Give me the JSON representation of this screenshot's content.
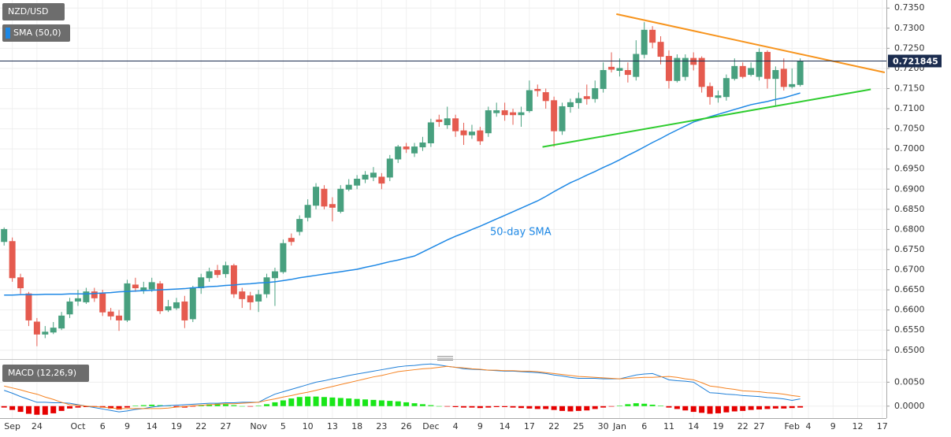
{
  "chart_data": {
    "type": "candlestick",
    "title": "NZD/USD",
    "categories": [
      null,
      "Sep",
      null,
      null,
      "24",
      null,
      null,
      null,
      null,
      "Oct",
      null,
      null,
      "6",
      null,
      null,
      "9",
      null,
      null,
      "14",
      null,
      null,
      "19",
      null,
      null,
      "22",
      null,
      null,
      "27",
      null,
      null,
      null,
      "Nov",
      null,
      null,
      "5",
      null,
      null,
      "10",
      null,
      null,
      "13",
      null,
      null,
      "18",
      null,
      null,
      "23",
      null,
      null,
      "26",
      null,
      null,
      "Dec",
      null,
      null,
      "4",
      null,
      null,
      "9",
      null,
      null,
      "14",
      null,
      null,
      "17",
      null,
      null,
      "22",
      null,
      null,
      "25",
      null,
      null,
      "30",
      null,
      "Jan",
      null,
      null,
      "6",
      null,
      null,
      "11",
      null,
      null,
      "14",
      null,
      null,
      "19",
      null,
      null,
      "22",
      null,
      "27",
      null,
      null,
      null,
      "Feb",
      null,
      "4",
      null,
      null,
      "9",
      null,
      null,
      "12",
      null,
      null,
      "17"
    ],
    "open": [
      0.677,
      0.677,
      0.668,
      0.664,
      0.657,
      0.654,
      0.6545,
      0.6555,
      0.659,
      0.6622,
      0.662,
      0.6645,
      0.664,
      0.6595,
      0.6585,
      0.6575,
      0.6662,
      0.665,
      0.6652,
      0.6665,
      0.66,
      0.6605,
      0.662,
      0.6578,
      0.6655,
      0.668,
      0.6698,
      0.669,
      0.671,
      0.6645,
      0.6635,
      0.6622,
      0.664,
      0.668,
      0.6695,
      0.6778,
      0.6795,
      0.683,
      0.686,
      0.69,
      0.6862,
      0.6845,
      0.69,
      0.691,
      0.6925,
      0.693,
      0.693,
      0.693,
      0.6975,
      0.7005,
      0.699,
      0.7005,
      0.7015,
      0.7072,
      0.706,
      0.7075,
      0.7045,
      0.7035,
      0.7045,
      0.704,
      0.709,
      0.7095,
      0.709,
      0.7085,
      0.7095,
      0.7148,
      0.714,
      0.712,
      0.7045,
      0.7105,
      0.7115,
      0.713,
      0.7125,
      0.715,
      0.7203,
      0.7195,
      0.7195,
      0.718,
      0.7235,
      0.7295,
      0.7265,
      0.723,
      0.717,
      0.718,
      0.7225,
      0.7225,
      0.7155,
      0.7128,
      0.713,
      0.7175,
      0.7205,
      0.7185,
      0.718,
      0.724,
      0.7175,
      0.7198,
      0.7155,
      0.716,
      null,
      null,
      null,
      null,
      null,
      null,
      null,
      null,
      null,
      null
    ],
    "high": [
      0.6805,
      0.678,
      0.669,
      0.6645,
      0.658,
      0.656,
      0.657,
      0.6595,
      0.663,
      0.665,
      0.6655,
      0.6655,
      0.665,
      0.6605,
      0.66,
      0.6675,
      0.668,
      0.667,
      0.668,
      0.6672,
      0.6625,
      0.663,
      0.6635,
      0.666,
      0.669,
      0.6705,
      0.6712,
      0.672,
      0.6715,
      0.6655,
      0.6645,
      0.665,
      0.669,
      0.6705,
      0.6775,
      0.679,
      0.6835,
      0.6875,
      0.6915,
      0.691,
      0.688,
      0.691,
      0.6925,
      0.6935,
      0.6945,
      0.6955,
      0.694,
      0.6985,
      0.701,
      0.7015,
      0.7015,
      0.703,
      0.7075,
      0.7085,
      0.7105,
      0.7085,
      0.7065,
      0.706,
      0.7055,
      0.7105,
      0.7115,
      0.7115,
      0.71,
      0.7105,
      0.717,
      0.716,
      0.715,
      0.713,
      0.7115,
      0.7125,
      0.714,
      0.716,
      0.717,
      0.7215,
      0.724,
      0.7225,
      0.7215,
      0.727,
      0.7315,
      0.7305,
      0.728,
      0.7245,
      0.7235,
      0.7235,
      0.724,
      0.723,
      0.7165,
      0.7145,
      0.7185,
      0.7225,
      0.7215,
      0.7215,
      0.725,
      0.7245,
      0.7205,
      0.7225,
      0.72,
      0.7225,
      null,
      null,
      null,
      null,
      null,
      null,
      null,
      null,
      null,
      null
    ],
    "low": [
      0.676,
      0.667,
      0.664,
      0.656,
      0.651,
      0.653,
      0.654,
      0.655,
      0.658,
      0.661,
      0.6615,
      0.662,
      0.6585,
      0.6575,
      0.6548,
      0.657,
      0.6645,
      0.664,
      0.6645,
      0.659,
      0.6595,
      0.66,
      0.6555,
      0.657,
      0.664,
      0.667,
      0.668,
      0.668,
      0.663,
      0.6605,
      0.66,
      0.6595,
      0.663,
      0.661,
      0.669,
      0.676,
      0.6785,
      0.682,
      0.685,
      0.685,
      0.682,
      0.684,
      0.6895,
      0.69,
      0.6915,
      0.692,
      0.69,
      0.692,
      0.6965,
      0.699,
      0.698,
      0.6995,
      0.7005,
      0.7055,
      0.705,
      0.703,
      0.701,
      0.7025,
      0.701,
      0.703,
      0.708,
      0.707,
      0.706,
      0.7055,
      0.709,
      0.713,
      0.71,
      0.7005,
      0.7035,
      0.709,
      0.71,
      0.711,
      0.7115,
      0.714,
      0.719,
      0.718,
      0.7165,
      0.717,
      0.7225,
      0.725,
      0.721,
      0.715,
      0.7165,
      0.717,
      0.7195,
      0.714,
      0.711,
      0.7115,
      0.712,
      0.717,
      0.7175,
      0.718,
      0.717,
      0.715,
      0.7105,
      0.7145,
      0.715,
      0.7155,
      null,
      null,
      null,
      null,
      null,
      null,
      null,
      null,
      null,
      null
    ],
    "close": [
      0.68,
      0.668,
      0.6655,
      0.6575,
      0.654,
      0.6545,
      0.6555,
      0.6585,
      0.662,
      0.6628,
      0.6645,
      0.663,
      0.6595,
      0.6585,
      0.6575,
      0.6665,
      0.6655,
      0.6655,
      0.6668,
      0.6598,
      0.6608,
      0.6618,
      0.6575,
      0.6655,
      0.668,
      0.6695,
      0.6688,
      0.671,
      0.664,
      0.6628,
      0.662,
      0.6638,
      0.668,
      0.6695,
      0.6765,
      0.677,
      0.6825,
      0.686,
      0.6905,
      0.6858,
      0.6855,
      0.69,
      0.691,
      0.6925,
      0.6935,
      0.694,
      0.6915,
      0.6975,
      0.7005,
      0.7,
      0.7005,
      0.7015,
      0.7065,
      0.7068,
      0.7075,
      0.7045,
      0.7035,
      0.7042,
      0.702,
      0.7095,
      0.7095,
      0.7085,
      0.7085,
      0.709,
      0.7145,
      0.7145,
      0.712,
      0.7045,
      0.7105,
      0.7115,
      0.7125,
      0.7125,
      0.715,
      0.7195,
      0.7198,
      0.72,
      0.7185,
      0.7235,
      0.7295,
      0.7265,
      0.723,
      0.717,
      0.7225,
      0.7225,
      0.721,
      0.7155,
      0.713,
      0.7132,
      0.7175,
      0.7205,
      0.718,
      0.72,
      0.724,
      0.7175,
      0.7195,
      0.7155,
      0.716,
      0.7218,
      null,
      null,
      null,
      null,
      null,
      null,
      null,
      null,
      null,
      null
    ],
    "up_color": "#48a07f",
    "down_color": "#e55b4f",
    "series": [
      {
        "name": "SMA (50,0)",
        "color": "#1e88e5",
        "values": [
          0.6637,
          0.6637,
          0.6638,
          0.6638,
          0.6638,
          0.6639,
          0.6639,
          0.6639,
          0.664,
          0.664,
          0.664,
          0.6641,
          0.6642,
          0.6643,
          0.6645,
          0.6646,
          0.6647,
          0.6648,
          0.6649,
          0.665,
          0.6651,
          0.6652,
          0.6653,
          0.6655,
          0.6656,
          0.6658,
          0.6659,
          0.6661,
          0.6662,
          0.6664,
          0.6665,
          0.6667,
          0.6668,
          0.667,
          0.6673,
          0.6676,
          0.668,
          0.6683,
          0.6686,
          0.6689,
          0.6692,
          0.6695,
          0.6698,
          0.6701,
          0.6706,
          0.671,
          0.6715,
          0.672,
          0.6724,
          0.6729,
          0.6734,
          0.6744,
          0.6754,
          0.6764,
          0.6774,
          0.6783,
          0.6791,
          0.68,
          0.6808,
          0.6817,
          0.6826,
          0.6835,
          0.6844,
          0.6853,
          0.6862,
          0.6871,
          0.6882,
          0.6894,
          0.6905,
          0.6916,
          0.6925,
          0.6935,
          0.6944,
          0.6954,
          0.6963,
          0.6973,
          0.6984,
          0.6994,
          0.7005,
          0.7016,
          0.7026,
          0.7037,
          0.7047,
          0.7057,
          0.7067,
          0.7073,
          0.708,
          0.7086,
          0.7092,
          0.7098,
          0.7104,
          0.711,
          0.7114,
          0.7118,
          0.7123,
          0.7127,
          0.7133,
          0.7139,
          null,
          null,
          null,
          null,
          null,
          null,
          null,
          null,
          null,
          null
        ]
      }
    ],
    "annotations": [
      "50-day SMA"
    ],
    "trendlines": [
      {
        "color": "#f7941d",
        "x": [
          74.6,
          107.3
        ],
        "y": [
          0.7335,
          0.719
        ]
      },
      {
        "color": "#2ecc2e",
        "x": [
          65.6,
          105.6
        ],
        "y": [
          0.7005,
          0.7148
        ]
      }
    ],
    "last_price": 0.721845,
    "last_price_color": "#1b2c4f",
    "ylim": [
      0.648,
      0.737
    ],
    "yticks": [
      {
        "value": 0.735,
        "label": "0.7350"
      },
      {
        "value": 0.73,
        "label": "0.7300"
      },
      {
        "value": 0.725,
        "label": "0.7250"
      },
      {
        "value": 0.72,
        "label": "0.7200"
      },
      {
        "value": 0.715,
        "label": "0.7150"
      },
      {
        "value": 0.71,
        "label": "0.7100"
      },
      {
        "value": 0.705,
        "label": "0.7050"
      },
      {
        "value": 0.7,
        "label": "0.7000"
      },
      {
        "value": 0.695,
        "label": "0.6950"
      },
      {
        "value": 0.69,
        "label": "0.6900"
      },
      {
        "value": 0.685,
        "label": "0.6850"
      },
      {
        "value": 0.68,
        "label": "0.6800"
      },
      {
        "value": 0.675,
        "label": "0.6750"
      },
      {
        "value": 0.67,
        "label": "0.6700"
      },
      {
        "value": 0.665,
        "label": "0.6650"
      },
      {
        "value": 0.66,
        "label": "0.6600"
      },
      {
        "value": 0.655,
        "label": "0.6550"
      },
      {
        "value": 0.65,
        "label": "0.6500"
      }
    ],
    "grid": true,
    "indicator": {
      "title": "MACD (12,26,9)",
      "ylim": [
        -0.0025,
        0.0095
      ],
      "yticks": [
        {
          "value": 0.005,
          "label": "0.0050"
        },
        {
          "value": 0,
          "label": "0.0000"
        }
      ],
      "series": [
        {
          "color": "#1e7fd8",
          "values": [
            0.0033,
            0.0027,
            0.002,
            0.0014,
            0.0008,
            0.0008,
            0.0007,
            0.0007,
            0.0006,
            0.0003,
            0,
            -0.0003,
            -0.0006,
            -0.0009,
            -0.0012,
            -0.001,
            -0.0007,
            -0.0005,
            -0.0002,
            0,
            0.0001,
            0.0002,
            0.0003,
            0.0004,
            0.0005,
            0.0006,
            0.0006,
            0.0007,
            0.0007,
            0.0008,
            0.0008,
            0.0008,
            0.0017,
            0.0025,
            0.003,
            0.0035,
            0.004,
            0.0045,
            0.005,
            0.0053,
            0.0057,
            0.006,
            0.0064,
            0.0067,
            0.007,
            0.0073,
            0.0076,
            0.0079,
            0.0082,
            0.0084,
            0.0085,
            0.0087,
            0.0088,
            0.0086,
            0.0083,
            0.0081,
            0.0078,
            0.0077,
            0.0076,
            0.0075,
            0.0074,
            0.0073,
            0.0073,
            0.0072,
            0.0071,
            0.007,
            0.0068,
            0.0065,
            0.0063,
            0.006,
            0.0058,
            0.0058,
            0.0058,
            0.0057,
            0.0057,
            0.0057,
            0.0061,
            0.0065,
            0.0067,
            0.0068,
            0.0062,
            0.0055,
            0.0053,
            0.0052,
            0.005,
            0.0039,
            0.0028,
            0.0027,
            0.0025,
            0.0024,
            0.0022,
            0.0021,
            0.002,
            0.0018,
            0.0017,
            0.0015,
            0.0012,
            0.0015,
            null,
            null,
            null,
            null,
            null,
            null,
            null,
            null,
            null,
            null
          ]
        },
        {
          "color": "#f58220",
          "values": [
            0.0042,
            0.0038,
            0.0034,
            0.0029,
            0.0025,
            0.0019,
            0.0014,
            0.0008,
            0.0003,
            0.0002,
            0,
            -0.0001,
            -0.0002,
            -0.0004,
            -0.0005,
            -0.0005,
            -0.0005,
            -0.0005,
            -0.0005,
            -0.0005,
            -0.0004,
            -0.0002,
            -0.0001,
            0.0001,
            0.0002,
            0.0003,
            0.0004,
            0.0005,
            0.0005,
            0.0006,
            0.0007,
            0.0008,
            0.0012,
            0.0015,
            0.0019,
            0.0022,
            0.0026,
            0.0029,
            0.0033,
            0.0037,
            0.0041,
            0.0045,
            0.0049,
            0.0053,
            0.0057,
            0.0061,
            0.0064,
            0.0068,
            0.0072,
            0.0074,
            0.0076,
            0.0078,
            0.0079,
            0.0081,
            0.0083,
            0.0081,
            0.008,
            0.0078,
            0.0077,
            0.0075,
            0.0075,
            0.0074,
            0.0074,
            0.0073,
            0.0073,
            0.0072,
            0.007,
            0.0068,
            0.0066,
            0.0064,
            0.0062,
            0.0061,
            0.006,
            0.0059,
            0.0058,
            0.0057,
            0.0058,
            0.0059,
            0.006,
            0.006,
            0.0061,
            0.0062,
            0.006,
            0.0057,
            0.0055,
            0.0049,
            0.0042,
            0.004,
            0.0037,
            0.0035,
            0.0032,
            0.0031,
            0.003,
            0.0028,
            0.0027,
            0.0025,
            0.0022,
            0.002,
            null,
            null,
            null,
            null,
            null,
            null,
            null,
            null,
            null,
            null
          ]
        }
      ],
      "histogram": {
        "up_color": "#19e619",
        "down_color": "#e60000",
        "values": [
          -0.0003,
          -0.0008,
          -0.0012,
          -0.0016,
          -0.0018,
          -0.0018,
          -0.0015,
          -0.001,
          -0.0005,
          -0.0003,
          -0.0002,
          -0.0002,
          -0.0003,
          -0.0005,
          -0.0007,
          -0.0003,
          0.0001,
          0.0002,
          0.0003,
          0.0002,
          0.0001,
          -0.0002,
          -0.0003,
          -0.0001,
          0.0002,
          0.0004,
          0.0005,
          0.0004,
          0.0002,
          0,
          -0.0001,
          0.0001,
          0.0004,
          0.0008,
          0.0012,
          0.0016,
          0.0019,
          0.002,
          0.002,
          0.0019,
          0.0018,
          0.0017,
          0.0016,
          0.0015,
          0.0014,
          0.0013,
          0.0012,
          0.0011,
          0.001,
          0.0008,
          0.0006,
          0.0004,
          0.0002,
          0,
          -0.0001,
          -0.0002,
          -0.0003,
          -0.0003,
          -0.0004,
          -0.0003,
          -0.0002,
          -0.0002,
          -0.0003,
          -0.0004,
          -0.0005,
          -0.0006,
          -0.0006,
          -0.0008,
          -0.001,
          -0.0011,
          -0.001,
          -0.0009,
          -0.0006,
          -0.0003,
          -0.0001,
          0.0001,
          0.0004,
          0.0006,
          0.0005,
          0.0003,
          0.0001,
          -0.0003,
          -0.0006,
          -0.0009,
          -0.0012,
          -0.0014,
          -0.0016,
          -0.0015,
          -0.0013,
          -0.0011,
          -0.001,
          -0.0008,
          -0.0007,
          -0.0006,
          -0.0005,
          -0.0005,
          -0.0004,
          -0.0003,
          null,
          null,
          null,
          null,
          null,
          null,
          null,
          null,
          null,
          null
        ]
      }
    }
  }
}
